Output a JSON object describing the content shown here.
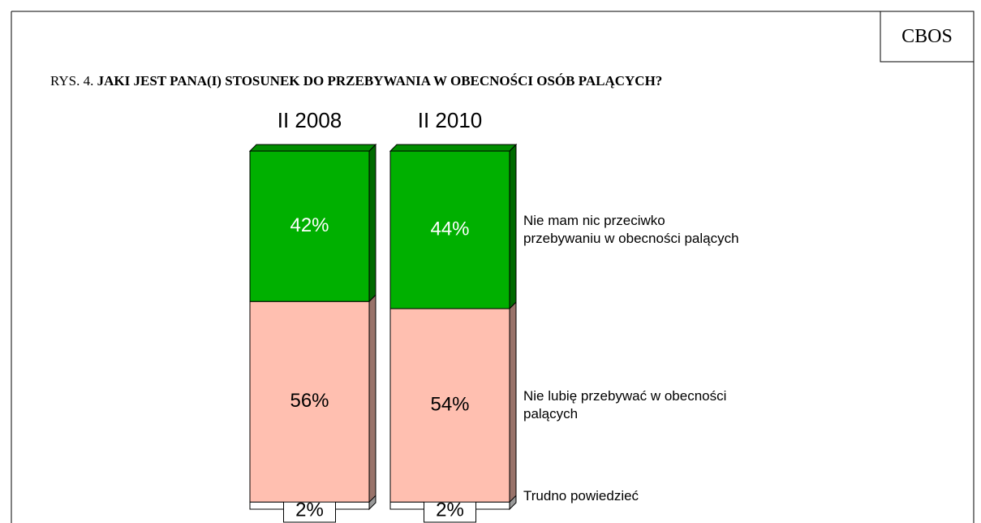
{
  "chart_data": {
    "type": "stacked-bar-100",
    "source": "CBOS",
    "figure_label": "RYS. 4.",
    "title": "JAKI JEST PANA(I) STOSUNEK DO PRZEBYWANIA W OBECNOŚCI OSÓB PALĄCYCH?",
    "categories": [
      "II 2008",
      "II 2010"
    ],
    "series": [
      {
        "name": "Trudno powiedzieć",
        "color": "#ffffff",
        "label_color": "#000000",
        "label_style": "boxed",
        "values": [
          2,
          2
        ],
        "value_labels": [
          "2%",
          "2%"
        ]
      },
      {
        "name": "Nie lubię przebywać w obecności palących",
        "color": "#ffbfb0",
        "label_color": "#000000",
        "values": [
          56,
          54
        ],
        "value_labels": [
          "56%",
          "54%"
        ]
      },
      {
        "name": "Nie mam nic przeciwko przebywaniu w obecności palących",
        "color": "#00b000",
        "label_color": "#ffffff",
        "values": [
          42,
          44
        ],
        "value_labels": [
          "42%",
          "44%"
        ]
      }
    ]
  }
}
